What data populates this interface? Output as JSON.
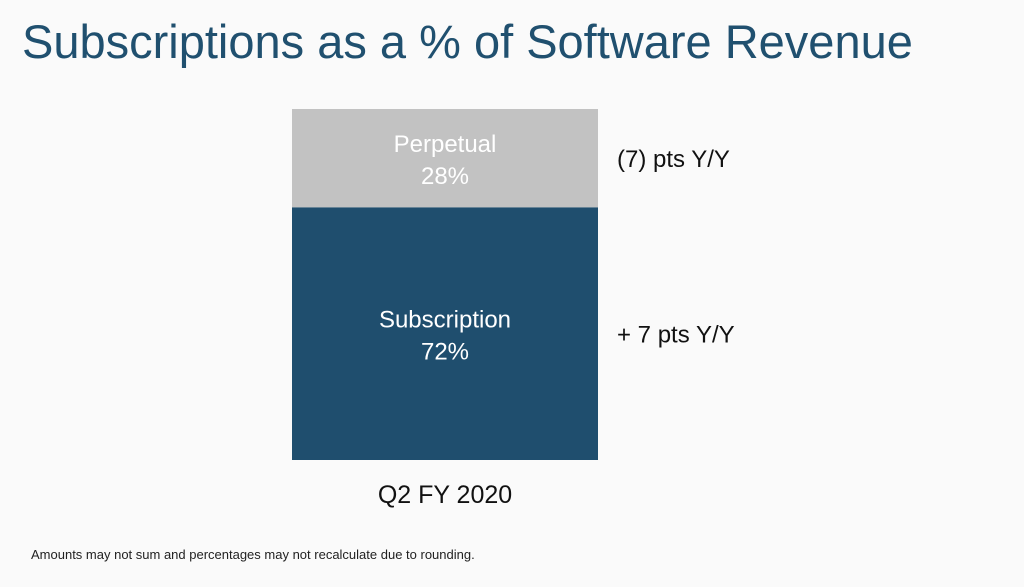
{
  "slide": {
    "title": "Subscriptions as a % of Software Revenue",
    "footnote": "Amounts may not sum and percentages may not recalculate due to rounding."
  },
  "chart_data": {
    "type": "bar",
    "stacked": true,
    "categories": [
      "Q2 FY 2020"
    ],
    "ylim": [
      0,
      100
    ],
    "grid": false,
    "series": [
      {
        "name": "Subscription",
        "values": [
          72
        ],
        "value_label": "72%",
        "change_label": "+ 7 pts Y/Y",
        "color": "#1f4e6e",
        "label_color": "#ffffff"
      },
      {
        "name": "Perpetual",
        "values": [
          28
        ],
        "value_label": "28%",
        "change_label": "(7) pts Y/Y",
        "color": "#c2c2c2",
        "label_color": "#ffffff"
      }
    ]
  }
}
